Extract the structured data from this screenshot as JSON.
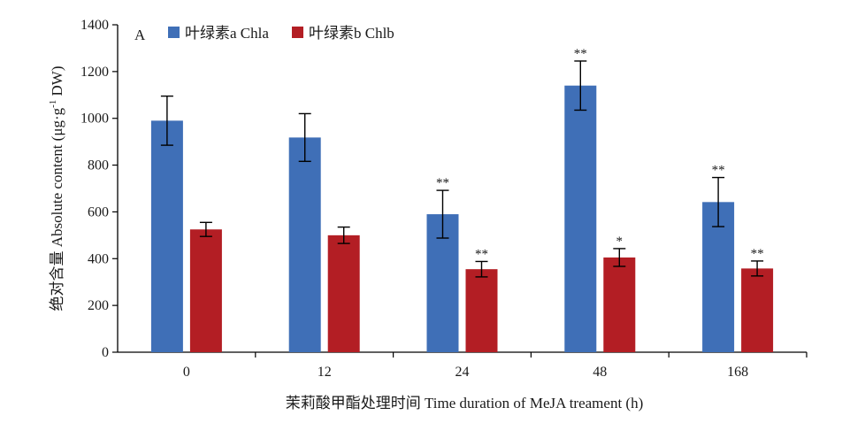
{
  "chart_data": {
    "type": "bar",
    "panel_label": "A",
    "categories": [
      "0",
      "12",
      "24",
      "48",
      "168"
    ],
    "series": [
      {
        "name": "叶绿素a Chla",
        "color": "#3f6fb7",
        "values": [
          990,
          918,
          590,
          1140,
          642
        ],
        "errors": [
          105,
          102,
          102,
          105,
          105
        ],
        "significance": [
          "",
          "",
          "**",
          "**",
          "**"
        ]
      },
      {
        "name": "叶绿素b Chlb",
        "color": "#b31e24",
        "values": [
          525,
          500,
          355,
          405,
          358
        ],
        "errors": [
          30,
          35,
          33,
          38,
          32
        ],
        "significance": [
          "",
          "",
          "**",
          "*",
          "**"
        ]
      }
    ],
    "xlabel": "茉莉酸甲酯处理时间 Time duration of MeJA treament (h)",
    "ylabel": {
      "prefix": "绝对含量 Absolute content (μg·g",
      "superscript": "-1",
      "suffix": " DW)"
    },
    "ylim": [
      0,
      1400
    ],
    "yticks": [
      0,
      200,
      400,
      600,
      800,
      1000,
      1200,
      1400
    ],
    "legend_position": "top-left",
    "grid": false
  }
}
